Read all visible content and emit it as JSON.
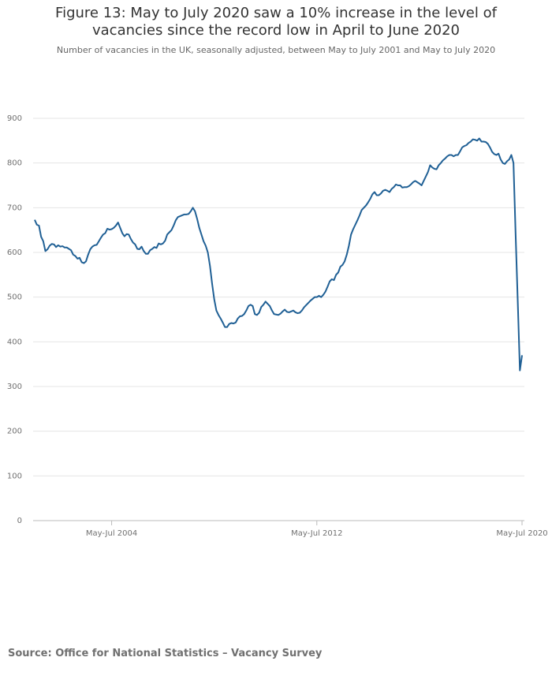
{
  "chart_data": {
    "type": "line",
    "title": "Figure 13: May to July 2020 saw a 10% increase in the level of vacancies since the record low in April to June 2020",
    "subtitle": "Number of vacancies in the UK, seasonally adjusted, between May to July 2001 and May to July 2020",
    "source": "Source: Office for National Statistics – Vacancy Survey",
    "color": "#206095",
    "grid": true,
    "ylim": [
      0,
      900
    ],
    "yticks": [
      0,
      100,
      200,
      300,
      400,
      500,
      600,
      700,
      800,
      900
    ],
    "categories": [
      null,
      null,
      null,
      null,
      null,
      null,
      null,
      null,
      null,
      null,
      null,
      null,
      null,
      null,
      null,
      null,
      null,
      null,
      null,
      null,
      null,
      null,
      null,
      null,
      null,
      null,
      null,
      null,
      null,
      null,
      null,
      null,
      null,
      null,
      null,
      null,
      "May-Jul 2004",
      null,
      null,
      null,
      null,
      null,
      null,
      null,
      null,
      null,
      null,
      null,
      null,
      null,
      null,
      null,
      null,
      null,
      null,
      null,
      null,
      null,
      null,
      null,
      null,
      null,
      null,
      null,
      null,
      null,
      null,
      null,
      null,
      null,
      null,
      null,
      null,
      null,
      null,
      null,
      null,
      null,
      null,
      null,
      null,
      null,
      null,
      null,
      null,
      null,
      null,
      null,
      null,
      null,
      null,
      null,
      null,
      null,
      null,
      null,
      null,
      null,
      null,
      null,
      null,
      null,
      null,
      null,
      null,
      null,
      null,
      null,
      null,
      null,
      null,
      null,
      null,
      null,
      null,
      null,
      null,
      null,
      null,
      null,
      null,
      null,
      null,
      null,
      null,
      null,
      null,
      null,
      null,
      null,
      null,
      null,
      "May-Jul 2012",
      null,
      null,
      null,
      null,
      null,
      null,
      null,
      null,
      null,
      null,
      null,
      null,
      null,
      null,
      null,
      null,
      null,
      null,
      null,
      null,
      null,
      null,
      null,
      null,
      null,
      null,
      null,
      null,
      null,
      null,
      null,
      null,
      null,
      null,
      null,
      null,
      null,
      null,
      null,
      null,
      null,
      null,
      null,
      null,
      null,
      null,
      null,
      null,
      null,
      null,
      null,
      null,
      null,
      null,
      null,
      null,
      null,
      null,
      null,
      null,
      null,
      null,
      null,
      null,
      null,
      null,
      null,
      null,
      null,
      null,
      null,
      null,
      null,
      null,
      null,
      null,
      null,
      null,
      null,
      null,
      null,
      null,
      null,
      null,
      null,
      null,
      null,
      null,
      null,
      null,
      null,
      null,
      null,
      null,
      null,
      "May-Jul 2020"
    ],
    "values": [
      673,
      662,
      660,
      635,
      625,
      603,
      607,
      615,
      619,
      618,
      612,
      616,
      613,
      614,
      611,
      611,
      608,
      605,
      595,
      592,
      586,
      588,
      578,
      576,
      580,
      595,
      607,
      613,
      616,
      617,
      625,
      633,
      640,
      643,
      653,
      651,
      652,
      655,
      660,
      667,
      655,
      643,
      636,
      641,
      640,
      630,
      622,
      618,
      608,
      607,
      613,
      603,
      597,
      597,
      605,
      608,
      612,
      610,
      620,
      618,
      620,
      626,
      640,
      645,
      650,
      660,
      672,
      679,
      681,
      683,
      685,
      685,
      686,
      692,
      700,
      692,
      675,
      655,
      640,
      625,
      615,
      600,
      570,
      530,
      495,
      470,
      460,
      452,
      443,
      433,
      433,
      440,
      442,
      441,
      443,
      452,
      457,
      458,
      462,
      470,
      480,
      483,
      480,
      462,
      460,
      465,
      478,
      483,
      490,
      485,
      480,
      470,
      462,
      461,
      460,
      463,
      468,
      472,
      467,
      466,
      468,
      470,
      466,
      464,
      465,
      470,
      477,
      482,
      487,
      492,
      496,
      500,
      500,
      503,
      500,
      505,
      512,
      523,
      535,
      540,
      538,
      550,
      555,
      568,
      572,
      580,
      595,
      615,
      640,
      652,
      662,
      672,
      683,
      695,
      700,
      705,
      712,
      720,
      730,
      735,
      728,
      728,
      732,
      738,
      740,
      738,
      735,
      742,
      746,
      752,
      750,
      750,
      745,
      746,
      746,
      748,
      752,
      757,
      760,
      757,
      754,
      750,
      760,
      770,
      780,
      795,
      790,
      787,
      786,
      795,
      800,
      806,
      810,
      815,
      818,
      818,
      815,
      818,
      818,
      826,
      835,
      838,
      840,
      845,
      848,
      853,
      852,
      850,
      855,
      848,
      848,
      847,
      843,
      835,
      825,
      820,
      818,
      821,
      808,
      800,
      798,
      804,
      808,
      818,
      800,
      640,
      490,
      336,
      370
    ]
  }
}
